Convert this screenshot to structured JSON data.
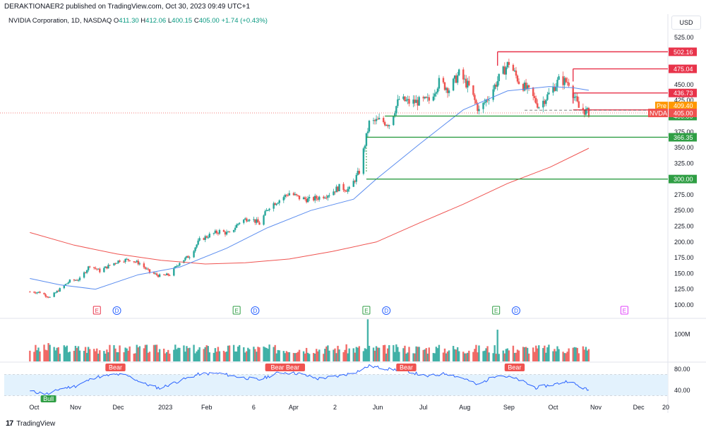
{
  "header": {
    "publish_line": "DERAKTIONAER2 published on TradingView.com, Oct 30, 2023 09:49 UTC+1"
  },
  "symbol": {
    "name": "NVIDIA Corporation, 1D, NASDAQ",
    "open_label": "O",
    "open": "411.30",
    "high_label": "H",
    "high": "412.06",
    "low_label": "L",
    "low": "400.15",
    "close_label": "C",
    "close": "405.00",
    "change": "+1.74 (+0.43%)"
  },
  "currency_button": "USD",
  "footer": {
    "brand": "TradingView",
    "logo_glyph": "17"
  },
  "colors": {
    "up": "#26a69a",
    "down": "#ef5350",
    "ma50": "#5b8def",
    "ma200": "#ef5350",
    "resistance": "#e8334a",
    "support": "#2f9e44",
    "rsi": "#2962ff",
    "pre": "#ff9800"
  },
  "chart_data": [
    {
      "type": "candlestick",
      "title": "NVIDIA Corporation, 1D, NASDAQ",
      "ylim": [
        85,
        545
      ],
      "y_ticks": [
        "525.00",
        "500.00",
        "475.00",
        "450.00",
        "425.00",
        "400.00",
        "375.00",
        "350.00",
        "325.00",
        "300.00",
        "275.00",
        "250.00",
        "225.00",
        "200.00",
        "175.00",
        "150.00",
        "125.00",
        "100.00"
      ],
      "x_ticks": [
        "Oct",
        "Nov",
        "Dec",
        "2023",
        "Feb",
        "6",
        "Apr",
        "2",
        "Jun",
        "Jul",
        "Aug",
        "Sep",
        "Oct",
        "Nov",
        "Dec",
        "20"
      ],
      "x_tick_dates": [
        "2022-10-03",
        "2022-11-01",
        "2022-12-01",
        "2023-01-03",
        "2023-02-01",
        "2023-03-06",
        "2023-04-03",
        "2023-05-02",
        "2023-06-01",
        "2023-07-03",
        "2023-08-01",
        "2023-09-01",
        "2023-10-02",
        "2023-11-01",
        "2023-12-01",
        "2023-12-20"
      ],
      "close_path": [
        [
          "2022-09-30",
          121
        ],
        [
          "2022-10-07",
          120
        ],
        [
          "2022-10-14",
          112
        ],
        [
          "2022-10-21",
          125
        ],
        [
          "2022-10-28",
          138
        ],
        [
          "2022-11-04",
          141
        ],
        [
          "2022-11-11",
          163
        ],
        [
          "2022-11-18",
          154
        ],
        [
          "2022-11-25",
          163
        ],
        [
          "2022-12-02",
          171
        ],
        [
          "2022-12-09",
          172
        ],
        [
          "2022-12-16",
          166
        ],
        [
          "2022-12-23",
          152
        ],
        [
          "2022-12-30",
          146
        ],
        [
          "2023-01-06",
          148
        ],
        [
          "2023-01-13",
          168
        ],
        [
          "2023-01-20",
          178
        ],
        [
          "2023-01-27",
          203
        ],
        [
          "2023-02-03",
          211
        ],
        [
          "2023-02-10",
          217
        ],
        [
          "2023-02-17",
          213
        ],
        [
          "2023-02-24",
          232
        ],
        [
          "2023-03-03",
          239
        ],
        [
          "2023-03-10",
          229
        ],
        [
          "2023-03-17",
          257
        ],
        [
          "2023-03-24",
          267
        ],
        [
          "2023-03-31",
          278
        ],
        [
          "2023-04-07",
          270
        ],
        [
          "2023-04-14",
          267
        ],
        [
          "2023-04-21",
          271
        ],
        [
          "2023-04-28",
          277
        ],
        [
          "2023-05-05",
          287
        ],
        [
          "2023-05-12",
          283
        ],
        [
          "2023-05-19",
          312
        ],
        [
          "2023-05-26",
          389
        ],
        [
          "2023-06-02",
          393
        ],
        [
          "2023-06-09",
          388
        ],
        [
          "2023-06-16",
          427
        ],
        [
          "2023-06-23",
          422
        ],
        [
          "2023-06-30",
          423
        ],
        [
          "2023-07-07",
          425
        ],
        [
          "2023-07-14",
          454
        ],
        [
          "2023-07-21",
          443
        ],
        [
          "2023-07-28",
          467
        ],
        [
          "2023-08-04",
          446
        ],
        [
          "2023-08-11",
          408
        ],
        [
          "2023-08-18",
          432
        ],
        [
          "2023-08-25",
          460
        ],
        [
          "2023-09-01",
          485
        ],
        [
          "2023-09-08",
          455
        ],
        [
          "2023-09-15",
          439
        ],
        [
          "2023-09-22",
          416
        ],
        [
          "2023-09-29",
          435
        ],
        [
          "2023-10-06",
          457
        ],
        [
          "2023-10-13",
          454
        ],
        [
          "2023-10-20",
          413
        ],
        [
          "2023-10-27",
          405
        ]
      ],
      "ma50": [
        [
          "2022-09-30",
          142
        ],
        [
          "2022-10-21",
          132
        ],
        [
          "2022-11-15",
          125
        ],
        [
          "2022-12-15",
          148
        ],
        [
          "2023-01-13",
          160
        ],
        [
          "2023-02-15",
          190
        ],
        [
          "2023-03-15",
          222
        ],
        [
          "2023-04-15",
          250
        ],
        [
          "2023-05-15",
          268
        ],
        [
          "2023-05-31",
          300
        ],
        [
          "2023-06-30",
          355
        ],
        [
          "2023-07-31",
          410
        ],
        [
          "2023-08-31",
          440
        ],
        [
          "2023-09-29",
          447
        ],
        [
          "2023-10-16",
          445
        ],
        [
          "2023-10-27",
          441
        ]
      ],
      "ma200": [
        [
          "2022-09-30",
          215
        ],
        [
          "2022-10-31",
          195
        ],
        [
          "2022-11-30",
          181
        ],
        [
          "2022-12-31",
          171
        ],
        [
          "2023-01-31",
          165
        ],
        [
          "2023-02-28",
          167
        ],
        [
          "2023-03-31",
          173
        ],
        [
          "2023-04-30",
          185
        ],
        [
          "2023-05-31",
          200
        ],
        [
          "2023-06-30",
          230
        ],
        [
          "2023-07-31",
          260
        ],
        [
          "2023-08-31",
          293
        ],
        [
          "2023-09-30",
          319
        ],
        [
          "2023-10-27",
          349
        ]
      ],
      "resistance_lines": [
        {
          "from": "2023-08-24",
          "value": 502.16,
          "label": "502.16"
        },
        {
          "from": "2023-10-16",
          "value": 475.04,
          "label": "475.04"
        },
        {
          "from": "2023-10-16",
          "value": 436.73,
          "label": "436.73"
        },
        {
          "from": "2023-10-16",
          "value": 409.8,
          "label": "409.80"
        }
      ],
      "support_lines": [
        {
          "from": "2023-06-06",
          "value": 400.0,
          "label": "400.00"
        },
        {
          "from": "2023-05-24",
          "value": 366.35,
          "label": "366.35"
        },
        {
          "from": "2023-05-24",
          "value": 300.0,
          "label": "300.00"
        }
      ],
      "pre_label": {
        "text": "Pre",
        "value": "409.40"
      },
      "last_price": {
        "symbol": "NVDA",
        "value": "405.00"
      },
      "events": [
        {
          "date": "2022-11-16",
          "type": "E",
          "color": "#e8334a"
        },
        {
          "date": "2022-11-30",
          "type": "D",
          "color": "#2962ff"
        },
        {
          "date": "2023-02-22",
          "type": "E",
          "color": "#2f9e44"
        },
        {
          "date": "2023-03-07",
          "type": "D",
          "color": "#2962ff"
        },
        {
          "date": "2023-05-24",
          "type": "E",
          "color": "#2f9e44"
        },
        {
          "date": "2023-06-07",
          "type": "D",
          "color": "#2962ff"
        },
        {
          "date": "2023-08-23",
          "type": "E",
          "color": "#2f9e44"
        },
        {
          "date": "2023-09-06",
          "type": "D",
          "color": "#2962ff"
        },
        {
          "date": "2023-11-21",
          "type": "E",
          "color": "#e040fb"
        }
      ]
    },
    {
      "type": "bar",
      "title": "Volume",
      "y_ticks": [
        "100M"
      ],
      "spikes": [
        [
          "2023-05-25",
          154
        ],
        [
          "2023-08-24",
          116
        ],
        [
          "2022-10-13",
          67
        ]
      ],
      "typical_volume_M": 50
    },
    {
      "type": "line",
      "title": "RSI",
      "ylim": [
        20,
        95
      ],
      "y_ticks": [
        "80.00",
        "40.00"
      ],
      "band": [
        30,
        70
      ],
      "values": [
        [
          "2022-09-30",
          38
        ],
        [
          "2022-10-14",
          33
        ],
        [
          "2022-10-21",
          43
        ],
        [
          "2022-11-01",
          48
        ],
        [
          "2022-11-15",
          65
        ],
        [
          "2022-11-30",
          70
        ],
        [
          "2022-12-07",
          68
        ],
        [
          "2022-12-20",
          52
        ],
        [
          "2022-12-30",
          44
        ],
        [
          "2023-01-13",
          58
        ],
        [
          "2023-01-27",
          71
        ],
        [
          "2023-02-10",
          72
        ],
        [
          "2023-02-24",
          65
        ],
        [
          "2023-03-10",
          60
        ],
        [
          "2023-03-24",
          74
        ],
        [
          "2023-04-06",
          72
        ],
        [
          "2023-04-20",
          62
        ],
        [
          "2023-05-05",
          67
        ],
        [
          "2023-05-17",
          75
        ],
        [
          "2023-05-26",
          86
        ],
        [
          "2023-06-09",
          80
        ],
        [
          "2023-06-20",
          78
        ],
        [
          "2023-07-05",
          66
        ],
        [
          "2023-07-19",
          72
        ],
        [
          "2023-08-01",
          62
        ],
        [
          "2023-08-10",
          50
        ],
        [
          "2023-08-24",
          70
        ],
        [
          "2023-09-08",
          60
        ],
        [
          "2023-09-20",
          45
        ],
        [
          "2023-10-04",
          52
        ],
        [
          "2023-10-13",
          58
        ],
        [
          "2023-10-20",
          48
        ],
        [
          "2023-10-27",
          40
        ]
      ],
      "bear_labels": [
        {
          "date": "2022-11-29",
          "text": "Bear"
        },
        {
          "date": "2023-03-28",
          "text": "Bear Bear"
        },
        {
          "date": "2023-06-21",
          "text": "Bear"
        },
        {
          "date": "2023-09-05",
          "text": "Bear"
        }
      ],
      "bull_labels": [
        {
          "date": "2022-10-13",
          "text": "Bull"
        }
      ]
    }
  ]
}
